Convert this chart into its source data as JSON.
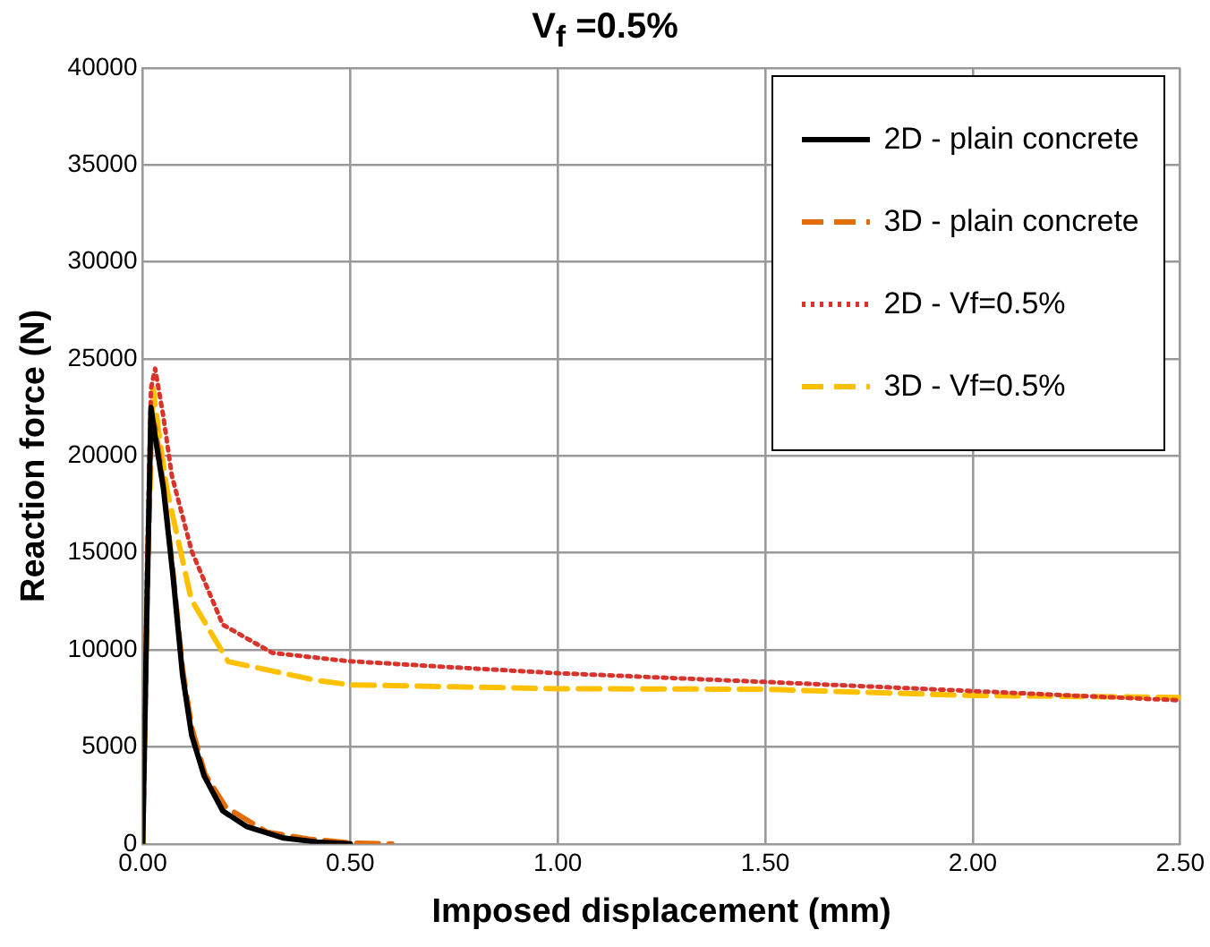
{
  "chart_data": {
    "type": "line",
    "title": "V$_{f}$ =0.5%",
    "xlabel": "Imposed displacement (mm)",
    "ylabel": "Reaction force (N)",
    "xlim": [
      0,
      2.5
    ],
    "xticks": [
      {
        "value": 0,
        "label": "0.00"
      },
      {
        "value": 0.5,
        "label": "0.50"
      },
      {
        "value": 1,
        "label": "1.00"
      },
      {
        "value": 1.5,
        "label": "1.50"
      },
      {
        "value": 2,
        "label": "2.00"
      },
      {
        "value": 2.5,
        "label": "2.50"
      }
    ],
    "ylim": [
      0,
      40000
    ],
    "yticks": [
      0,
      5000,
      10000,
      15000,
      20000,
      25000,
      30000,
      35000,
      40000
    ],
    "grid": true,
    "legend": "top right",
    "marker": "none",
    "series": [
      {
        "name": "2D - plain concrete",
        "color": "#000000",
        "line_style": "solid",
        "x": [
          0,
          0.01,
          0.02,
          0.03,
          0.05,
          0.073,
          0.096,
          0.118,
          0.148,
          0.193,
          0.25,
          0.34,
          0.42,
          0.5
        ],
        "values": [
          0,
          12000,
          22500,
          21000,
          18300,
          13800,
          8700,
          5600,
          3500,
          1700,
          900,
          300,
          100,
          0
        ]
      },
      {
        "name": "3D - plain concrete",
        "color": "#e36c09",
        "line_style": "dashed",
        "x": [
          0,
          0.01,
          0.02,
          0.03,
          0.05,
          0.073,
          0.096,
          0.118,
          0.15,
          0.2,
          0.3,
          0.4,
          0.5,
          0.6
        ],
        "values": [
          0,
          12000,
          22000,
          21500,
          18500,
          14000,
          9000,
          6000,
          3600,
          1900,
          600,
          250,
          50,
          0
        ]
      },
      {
        "name": "2D - Vf=0.5%",
        "color": "#d9342b",
        "line_style": "dotted",
        "x": [
          0,
          0.01,
          0.02,
          0.03,
          0.05,
          0.07,
          0.118,
          0.193,
          0.312,
          0.49,
          0.75,
          1.0,
          1.5,
          2.0,
          2.5
        ],
        "values": [
          0,
          14000,
          23500,
          24500,
          22000,
          19000,
          15100,
          11300,
          9850,
          9430,
          9100,
          8800,
          8350,
          7880,
          7400
        ]
      },
      {
        "name": "3D - Vf=0.5%",
        "color": "#ffc000",
        "line_style": "dashed",
        "x": [
          0,
          0.01,
          0.025,
          0.04,
          0.058,
          0.117,
          0.206,
          0.417,
          0.5,
          1.0,
          1.5,
          2.0,
          2.5
        ],
        "values": [
          0,
          13000,
          23500,
          21000,
          18300,
          12600,
          9400,
          8440,
          8200,
          8000,
          7970,
          7650,
          7550
        ]
      }
    ]
  }
}
